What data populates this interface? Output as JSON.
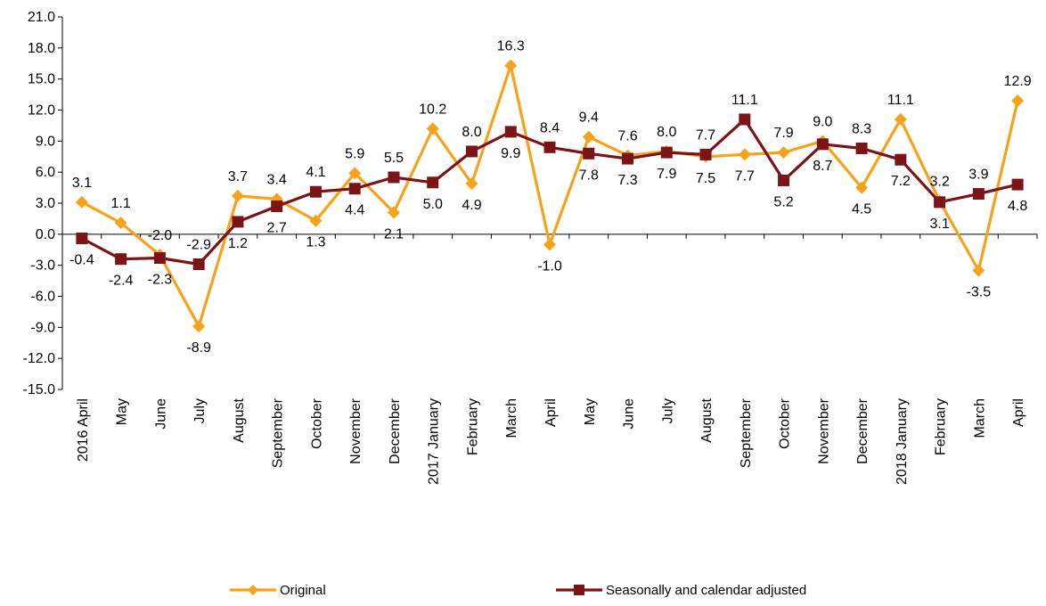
{
  "chart_data": {
    "type": "line",
    "title": "",
    "xlabel": "",
    "ylabel": "",
    "ylim": [
      -15,
      21
    ],
    "yticks": [
      "21.0",
      "18.0",
      "15.0",
      "12.0",
      "9.0",
      "6.0",
      "3.0",
      "0.0",
      "-3.0",
      "-6.0",
      "-9.0",
      "-12.0",
      "-15.0"
    ],
    "categories": [
      "2016 April",
      "May",
      "June",
      "July",
      "August",
      "September",
      "October",
      "November",
      "December",
      "2017 January",
      "February",
      "March",
      "April",
      "May",
      "June",
      "July",
      "August",
      "September",
      "October",
      "November",
      "December",
      "2018 January",
      "February",
      "March",
      "April"
    ],
    "legend_position": "bottom",
    "grid": false,
    "series": [
      {
        "name": "Original",
        "color": "#F7A21B",
        "marker": "diamond",
        "values": [
          3.1,
          1.1,
          -2.0,
          -8.9,
          3.7,
          3.4,
          1.3,
          5.9,
          2.1,
          10.2,
          4.9,
          16.3,
          -1.0,
          9.4,
          7.6,
          8.0,
          7.5,
          7.7,
          7.9,
          9.0,
          4.5,
          11.1,
          3.2,
          -3.5,
          12.9
        ],
        "labels": [
          "3.1",
          "1.1",
          "-2.0",
          "-8.9",
          "3.7",
          "3.4",
          "1.3",
          "5.9",
          "2.1",
          "10.2",
          "4.9",
          "16.3",
          "-1.0",
          "9.4",
          "7.6",
          "8.0",
          "7.5",
          "7.7",
          "7.9",
          "9.0",
          "4.5",
          "11.1",
          "3.2",
          "-3.5",
          "12.9"
        ],
        "label_side": [
          "above",
          "above",
          "above",
          "below",
          "above",
          "above",
          "below",
          "above",
          "below",
          "above",
          "below",
          "above",
          "below",
          "above",
          "above",
          "above",
          "below",
          "below",
          "above",
          "above",
          "below",
          "above",
          "above",
          "below",
          "above"
        ]
      },
      {
        "name": "Seasonally and calendar adjusted",
        "color": "#7B1416",
        "marker": "square",
        "values": [
          -0.4,
          -2.4,
          -2.3,
          -2.9,
          1.2,
          2.7,
          4.1,
          4.4,
          5.5,
          5.0,
          8.0,
          9.9,
          8.4,
          7.8,
          7.3,
          7.9,
          7.7,
          11.1,
          5.2,
          8.7,
          8.3,
          7.2,
          3.1,
          3.9,
          4.8
        ],
        "labels": [
          "-0.4",
          "-2.4",
          "-2.3",
          "-2.9",
          "1.2",
          "2.7",
          "4.1",
          "4.4",
          "5.5",
          "5.0",
          "8.0",
          "9.9",
          "8.4",
          "7.8",
          "7.3",
          "7.9",
          "7.7",
          "11.1",
          "5.2",
          "8.7",
          "8.3",
          "7.2",
          "3.1",
          "3.9",
          "4.8"
        ],
        "label_side": [
          "below",
          "below",
          "below",
          "above",
          "below",
          "below",
          "above",
          "below",
          "above",
          "below",
          "above",
          "below",
          "above",
          "below",
          "below",
          "below",
          "above",
          "above",
          "below",
          "below",
          "above",
          "below",
          "below",
          "above",
          "below"
        ]
      }
    ]
  }
}
